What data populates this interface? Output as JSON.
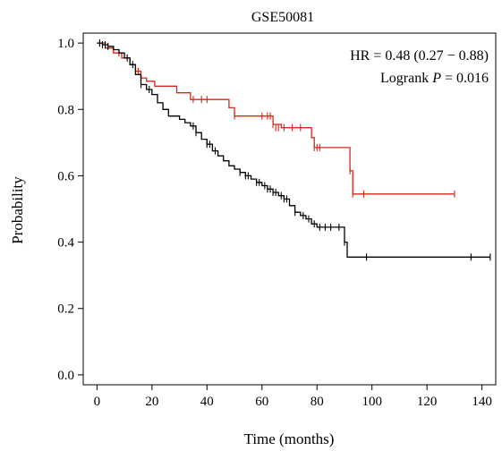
{
  "chart_data": {
    "type": "line",
    "title": "GSE50081",
    "xlabel": "Time (months)",
    "ylabel": "Probability",
    "xlim": [
      -5,
      145
    ],
    "ylim": [
      -0.03,
      1.03
    ],
    "xticks": [
      "0",
      "20",
      "40",
      "60",
      "80",
      "100",
      "120",
      "140"
    ],
    "yticks": [
      "0.0",
      "0.2",
      "0.4",
      "0.6",
      "0.8",
      "1.0"
    ],
    "xtick_values": [
      0,
      20,
      40,
      60,
      80,
      100,
      120,
      140
    ],
    "ytick_values": [
      0.0,
      0.2,
      0.4,
      0.6,
      0.8,
      1.0
    ],
    "annotation": {
      "hr_text": "HR = 0.48 (0.27 − 0.88)",
      "logrank_prefix": "Logrank ",
      "logrank_p": "P",
      "logrank_value": " = 0.016"
    },
    "grid": false,
    "legend": "none",
    "series": [
      {
        "color": "#d62718",
        "steps": [
          [
            0,
            1.0
          ],
          [
            3,
            0.985
          ],
          [
            6,
            0.97
          ],
          [
            9,
            0.955
          ],
          [
            12,
            0.935
          ],
          [
            14,
            0.915
          ],
          [
            16,
            0.895
          ],
          [
            18,
            0.885
          ],
          [
            21,
            0.87
          ],
          [
            29,
            0.85
          ],
          [
            34,
            0.83
          ],
          [
            48,
            0.805
          ],
          [
            50,
            0.78
          ],
          [
            64,
            0.755
          ],
          [
            67,
            0.745
          ],
          [
            78,
            0.715
          ],
          [
            79,
            0.685
          ],
          [
            92,
            0.615
          ],
          [
            93,
            0.545
          ],
          [
            130,
            0.545
          ]
        ],
        "censors": [
          [
            1,
            1.0
          ],
          [
            8,
            0.97
          ],
          [
            15,
            0.915
          ],
          [
            35,
            0.83
          ],
          [
            38,
            0.83
          ],
          [
            40,
            0.83
          ],
          [
            50,
            0.78
          ],
          [
            60,
            0.78
          ],
          [
            62,
            0.78
          ],
          [
            63,
            0.78
          ],
          [
            64,
            0.755
          ],
          [
            65,
            0.745
          ],
          [
            66,
            0.745
          ],
          [
            68,
            0.745
          ],
          [
            71,
            0.745
          ],
          [
            74,
            0.745
          ],
          [
            79,
            0.685
          ],
          [
            80,
            0.685
          ],
          [
            81,
            0.685
          ],
          [
            92,
            0.615
          ],
          [
            93,
            0.545
          ],
          [
            97,
            0.545
          ],
          [
            130,
            0.545
          ]
        ]
      },
      {
        "color": "#000000",
        "steps": [
          [
            0,
            1.0
          ],
          [
            2,
            0.995
          ],
          [
            4,
            0.99
          ],
          [
            6,
            0.98
          ],
          [
            8,
            0.97
          ],
          [
            10,
            0.955
          ],
          [
            12,
            0.935
          ],
          [
            14,
            0.905
          ],
          [
            16,
            0.875
          ],
          [
            18,
            0.86
          ],
          [
            20,
            0.845
          ],
          [
            22,
            0.82
          ],
          [
            24,
            0.8
          ],
          [
            26,
            0.78
          ],
          [
            30,
            0.77
          ],
          [
            32,
            0.76
          ],
          [
            34,
            0.75
          ],
          [
            36,
            0.73
          ],
          [
            38,
            0.71
          ],
          [
            40,
            0.695
          ],
          [
            42,
            0.675
          ],
          [
            44,
            0.66
          ],
          [
            46,
            0.645
          ],
          [
            48,
            0.63
          ],
          [
            50,
            0.62
          ],
          [
            52,
            0.61
          ],
          [
            54,
            0.6
          ],
          [
            56,
            0.59
          ],
          [
            58,
            0.58
          ],
          [
            60,
            0.57
          ],
          [
            62,
            0.56
          ],
          [
            64,
            0.55
          ],
          [
            66,
            0.54
          ],
          [
            68,
            0.53
          ],
          [
            70,
            0.51
          ],
          [
            72,
            0.49
          ],
          [
            74,
            0.48
          ],
          [
            76,
            0.47
          ],
          [
            78,
            0.455
          ],
          [
            80,
            0.445
          ],
          [
            90,
            0.4
          ],
          [
            91,
            0.355
          ],
          [
            143,
            0.355
          ]
        ],
        "censors": [
          [
            1,
            1.0
          ],
          [
            2,
            0.995
          ],
          [
            3,
            0.995
          ],
          [
            4,
            0.99
          ],
          [
            11,
            0.955
          ],
          [
            13,
            0.935
          ],
          [
            16,
            0.875
          ],
          [
            19,
            0.86
          ],
          [
            35,
            0.75
          ],
          [
            36,
            0.73
          ],
          [
            40,
            0.695
          ],
          [
            41,
            0.695
          ],
          [
            43,
            0.675
          ],
          [
            52,
            0.61
          ],
          [
            54,
            0.6
          ],
          [
            55,
            0.6
          ],
          [
            58,
            0.58
          ],
          [
            59,
            0.58
          ],
          [
            61,
            0.57
          ],
          [
            62,
            0.56
          ],
          [
            63,
            0.56
          ],
          [
            64,
            0.55
          ],
          [
            65,
            0.55
          ],
          [
            67,
            0.54
          ],
          [
            68,
            0.53
          ],
          [
            69,
            0.53
          ],
          [
            72,
            0.49
          ],
          [
            75,
            0.48
          ],
          [
            77,
            0.47
          ],
          [
            79,
            0.455
          ],
          [
            81,
            0.445
          ],
          [
            83,
            0.445
          ],
          [
            85,
            0.445
          ],
          [
            88,
            0.445
          ],
          [
            90,
            0.4
          ],
          [
            98,
            0.355
          ],
          [
            136,
            0.355
          ],
          [
            143,
            0.355
          ]
        ]
      }
    ]
  }
}
